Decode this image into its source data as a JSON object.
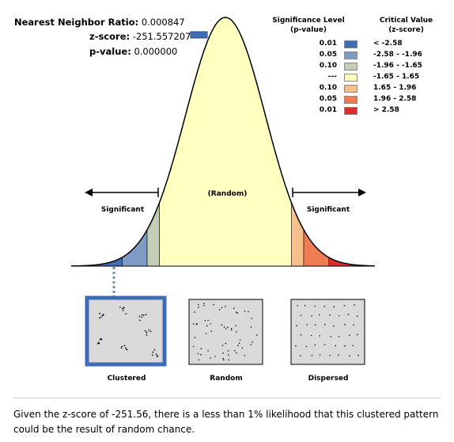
{
  "stats": {
    "nn_label": "Nearest Neighbor Ratio:",
    "nn_value": "0.000847",
    "z_label": "z-score:",
    "z_value": "-251.557207",
    "p_label": "p-value:",
    "p_value": "0.000000"
  },
  "legend": {
    "sig_header_line1": "Significance Level",
    "sig_header_line2": "(p-value)",
    "crit_header_line1": "Critical Value",
    "crit_header_line2": "(z-score)",
    "rows": [
      {
        "p": "0.01",
        "z": "< -2.58",
        "color": "#3e6db5"
      },
      {
        "p": "0.05",
        "z": "-2.58 - -1.96",
        "color": "#7e9bc4"
      },
      {
        "p": "0.10",
        "z": "-1.96 - -1.65",
        "color": "#c2cfb6"
      },
      {
        "p": "---",
        "z": "-1.65 - 1.65",
        "color": "#ffffc0"
      },
      {
        "p": "0.10",
        "z": "1.65 - 1.96",
        "color": "#f6c08c"
      },
      {
        "p": "0.05",
        "z": "1.96 - 2.58",
        "color": "#ef7c52"
      },
      {
        "p": "0.01",
        "z": "> 2.58",
        "color": "#d7302a"
      }
    ]
  },
  "curve": {
    "random_label": "(Random)",
    "significant_left": "Significant",
    "significant_right": "Significant"
  },
  "patterns": {
    "clustered": "Clustered",
    "random": "Random",
    "dispersed": "Dispersed"
  },
  "caption": "Given the z-score of -251.56, there is a less than 1% likelihood that this clustered pattern could be the result of random chance."
}
